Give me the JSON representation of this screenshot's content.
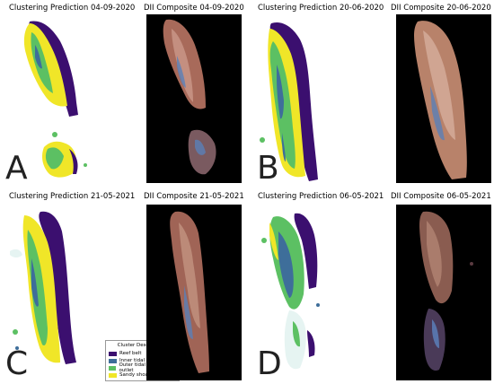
{
  "panels": {
    "A": {
      "letter": "A",
      "cluster_title": "Clustering Prediction 04-09-2020",
      "composite_title": "DII Composite 04-09-2020"
    },
    "B": {
      "letter": "B",
      "cluster_title": "Clustering Prediction 20-06-2020",
      "composite_title": "DII Composite 20-06-2020"
    },
    "C": {
      "letter": "C",
      "cluster_title": "Clustering Prediction 21-05-2021",
      "composite_title": "DII Composite 21-05-2021"
    },
    "D": {
      "letter": "D",
      "cluster_title": "Clustering Prediction 06-05-2021",
      "composite_title": "DII Composite 06-05-2021"
    }
  },
  "legend": {
    "title": "Cluster Descriptions",
    "items": [
      {
        "label": "Reef belt",
        "color": "#3b0f6f"
      },
      {
        "label": "Inner tidal channel",
        "color": "#3e6e9a"
      },
      {
        "label": "Outer tidal channel outlet",
        "color": "#5cc063"
      },
      {
        "label": "Sandy shoals",
        "color": "#f0e628"
      }
    ]
  },
  "colors": {
    "reef_belt": "#3b0f6f",
    "inner_channel": "#3e6e9a",
    "outer_channel": "#5cc063",
    "sandy_shoals": "#f0e628",
    "composite_background": "#000000",
    "composite_land": "#a86a5a"
  }
}
